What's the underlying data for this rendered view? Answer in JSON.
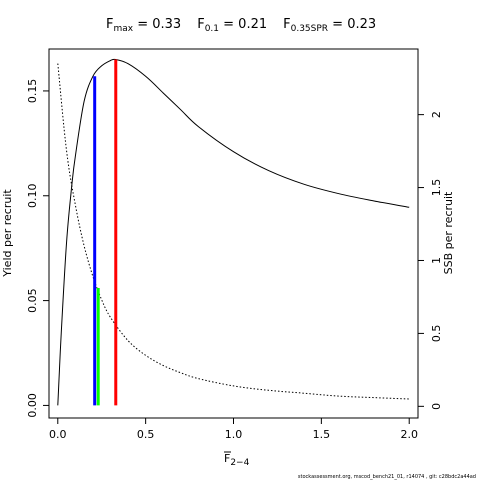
{
  "title": {
    "fmax_label": "F",
    "fmax_sub": "max",
    "fmax_value": " = 0.33",
    "f01_label": "F",
    "f01_sub": "0.1",
    "f01_value": " = 0.21",
    "fspr_label": "F",
    "fspr_sub": "0.35SPR",
    "fspr_value": " = 0.23"
  },
  "axes": {
    "xlabel_main": "F",
    "xlabel_sub": "2−4",
    "ylabel_left": "Yield per recruit",
    "ylabel_right": "SSB per recruit"
  },
  "footer": "stockassessment.org, mscod_bench21_01, r14074 , git: c28bdc2a44ad",
  "colors": {
    "fmax": "#ff0000",
    "f01": "#0000ff",
    "fspr": "#00ff00",
    "curves": "#000000"
  },
  "chart_data": {
    "type": "line",
    "x_ticks": [
      "0.0",
      "0.5",
      "1.0",
      "1.5",
      "2.0"
    ],
    "y_left_ticks": [
      "0.00",
      "0.05",
      "0.10",
      "0.15"
    ],
    "y_right_ticks": [
      "0",
      "0.5",
      "1",
      "1.5",
      "2"
    ],
    "xlim": [
      -0.05,
      2.05
    ],
    "ylim_left": [
      -0.006,
      0.17
    ],
    "ylim_right": [
      -0.08,
      2.45
    ],
    "grid": false,
    "series": [
      {
        "axis": "left",
        "style": "solid",
        "x": [
          0,
          0.02,
          0.05,
          0.08,
          0.1,
          0.15,
          0.2,
          0.25,
          0.3,
          0.33,
          0.4,
          0.5,
          0.6,
          0.7,
          0.8,
          1.0,
          1.2,
          1.4,
          1.6,
          1.8,
          2.0
        ],
        "y": [
          0,
          0.035,
          0.078,
          0.105,
          0.119,
          0.145,
          0.157,
          0.162,
          0.1645,
          0.165,
          0.163,
          0.157,
          0.149,
          0.141,
          0.133,
          0.121,
          0.112,
          0.1055,
          0.101,
          0.0975,
          0.0945
        ]
      },
      {
        "axis": "right",
        "style": "dotted",
        "x": [
          0,
          0.05,
          0.1,
          0.15,
          0.2,
          0.25,
          0.3,
          0.4,
          0.5,
          0.6,
          0.7,
          0.8,
          1.0,
          1.2,
          1.4,
          1.6,
          1.8,
          2.0
        ],
        "y": [
          2.35,
          1.75,
          1.38,
          1.1,
          0.89,
          0.73,
          0.61,
          0.45,
          0.35,
          0.28,
          0.23,
          0.19,
          0.14,
          0.11,
          0.09,
          0.07,
          0.06,
          0.05
        ]
      }
    ],
    "ref_lines": [
      {
        "name": "Fmax",
        "x": 0.33,
        "y": 0.165,
        "color": "#ff0000"
      },
      {
        "name": "F0.1",
        "x": 0.21,
        "y": 0.157,
        "color": "#0000ff"
      },
      {
        "name": "F0.35SPR",
        "x": 0.23,
        "y": 0.056,
        "color": "#00ff00"
      }
    ]
  }
}
